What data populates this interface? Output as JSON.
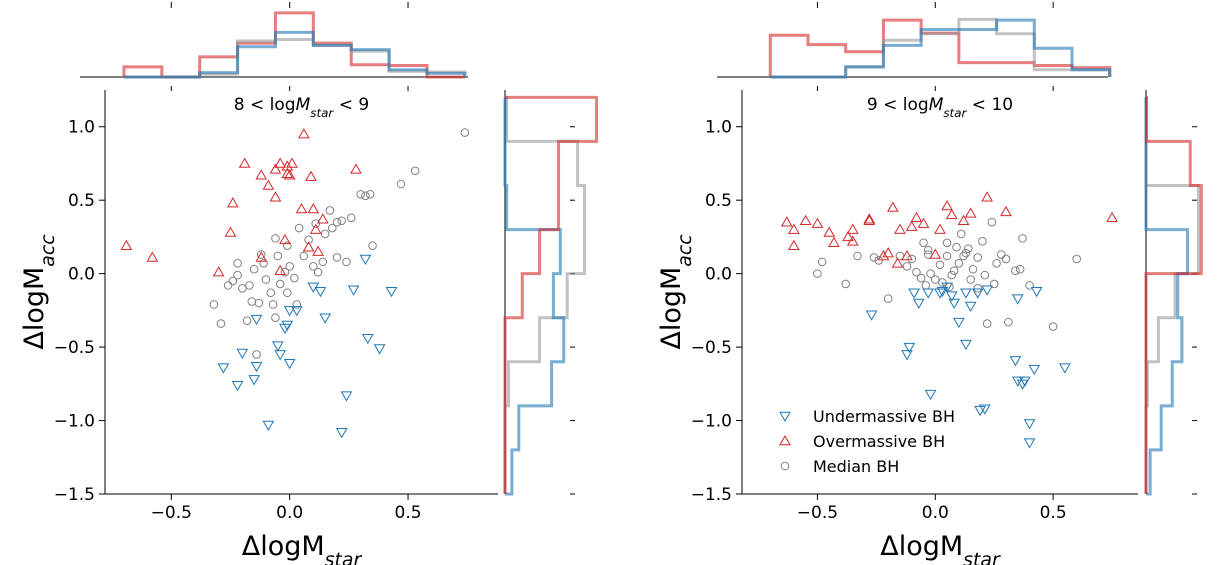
{
  "colors": {
    "under": "#1f77b4",
    "over": "#d62728",
    "median": "#808080",
    "hist_under": "#1f77b4",
    "hist_over": "#d62728",
    "hist_median": "#999999"
  },
  "chart_data": [
    {
      "type": "scatter",
      "title_parts": {
        "pre": "8 < log",
        "main": "M",
        "sub": "star",
        "post": " < 9"
      },
      "xlabel": {
        "main": "ΔlogM",
        "sub": "star"
      },
      "ylabel": {
        "main": "ΔlogM",
        "sub": "acc"
      },
      "xlim": [
        -0.78,
        0.88
      ],
      "ylim": [
        -1.5,
        1.25
      ],
      "xticks": [
        -0.5,
        0.0,
        0.5
      ],
      "xtick_labels": [
        "−0.5",
        "0.0",
        "0.5"
      ],
      "yticks": [
        1.0,
        0.5,
        0.0,
        -0.5,
        -1.0,
        -1.5
      ],
      "ytick_labels": [
        "1.0",
        "0.5",
        "0.0",
        "−0.5",
        "−1.0",
        "−1.5"
      ],
      "series": [
        {
          "key": "under",
          "points": [
            [
              -0.28,
              -0.64
            ],
            [
              -0.2,
              -0.54
            ],
            [
              -0.22,
              -0.76
            ],
            [
              -0.15,
              -0.72
            ],
            [
              -0.14,
              -0.63
            ],
            [
              -0.14,
              -0.31
            ],
            [
              -0.09,
              -1.03
            ],
            [
              -0.05,
              -0.49
            ],
            [
              -0.04,
              -0.55
            ],
            [
              -0.02,
              -0.37
            ],
            [
              0.0,
              -0.61
            ],
            [
              0.0,
              -0.25
            ],
            [
              0.03,
              -0.25
            ],
            [
              0.1,
              -0.09
            ],
            [
              0.13,
              -0.12
            ],
            [
              0.15,
              -0.3
            ],
            [
              0.22,
              -1.08
            ],
            [
              0.24,
              -0.83
            ],
            [
              0.27,
              -0.11
            ],
            [
              0.32,
              0.1
            ],
            [
              0.33,
              -0.44
            ],
            [
              0.38,
              -0.51
            ],
            [
              0.43,
              -0.12
            ],
            [
              -0.01,
              -0.35
            ]
          ]
        },
        {
          "key": "over",
          "points": [
            [
              -0.69,
              0.19
            ],
            [
              -0.58,
              0.11
            ],
            [
              -0.3,
              0.01
            ],
            [
              -0.24,
              0.48
            ],
            [
              -0.25,
              0.28
            ],
            [
              -0.19,
              0.75
            ],
            [
              -0.12,
              0.67
            ],
            [
              -0.09,
              0.6
            ],
            [
              -0.06,
              0.71
            ],
            [
              -0.04,
              0.75
            ],
            [
              -0.06,
              0.52
            ],
            [
              -0.04,
              0.02
            ],
            [
              -0.01,
              0.68
            ],
            [
              0.0,
              0.67
            ],
            [
              0.01,
              0.75
            ],
            [
              -0.12,
              0.11
            ],
            [
              -0.02,
              0.23
            ],
            [
              0.05,
              0.44
            ],
            [
              0.06,
              0.95
            ],
            [
              0.09,
              0.66
            ],
            [
              0.1,
              0.44
            ],
            [
              0.11,
              0.3
            ],
            [
              0.12,
              0.15
            ],
            [
              0.14,
              0.37
            ],
            [
              0.08,
              0.18
            ],
            [
              0.28,
              0.71
            ],
            [
              -0.01,
              0.73
            ]
          ]
        },
        {
          "key": "median",
          "points": [
            [
              -0.32,
              -0.21
            ],
            [
              -0.29,
              -0.34
            ],
            [
              -0.26,
              -0.08
            ],
            [
              -0.24,
              -0.05
            ],
            [
              -0.22,
              0.07
            ],
            [
              -0.22,
              -0.01
            ],
            [
              -0.2,
              -0.1
            ],
            [
              -0.17,
              -0.08
            ],
            [
              -0.16,
              -0.19
            ],
            [
              -0.15,
              0.03
            ],
            [
              -0.13,
              -0.2
            ],
            [
              -0.12,
              0.13
            ],
            [
              -0.11,
              0.07
            ],
            [
              -0.1,
              -0.04
            ],
            [
              -0.08,
              -0.13
            ],
            [
              -0.07,
              -0.21
            ],
            [
              -0.06,
              -0.3
            ],
            [
              -0.06,
              0.24
            ],
            [
              -0.05,
              0.12
            ],
            [
              -0.04,
              -0.07
            ],
            [
              -0.02,
              0.01
            ],
            [
              -0.01,
              -0.13
            ],
            [
              -0.01,
              0.19
            ],
            [
              0.0,
              0.05
            ],
            [
              0.02,
              -0.03
            ],
            [
              0.03,
              -0.21
            ],
            [
              0.04,
              0.31
            ],
            [
              0.06,
              0.12
            ],
            [
              0.08,
              0.23
            ],
            [
              0.1,
              0.05
            ],
            [
              0.11,
              0.34
            ],
            [
              0.12,
              0.01
            ],
            [
              0.14,
              0.08
            ],
            [
              0.15,
              0.27
            ],
            [
              0.17,
              0.43
            ],
            [
              0.18,
              0.31
            ],
            [
              0.2,
              0.35
            ],
            [
              0.22,
              0.36
            ],
            [
              0.24,
              0.08
            ],
            [
              0.26,
              0.38
            ],
            [
              0.3,
              0.54
            ],
            [
              0.32,
              0.53
            ],
            [
              0.34,
              0.54
            ],
            [
              0.35,
              0.19
            ],
            [
              0.47,
              0.61
            ],
            [
              0.53,
              0.7
            ],
            [
              0.74,
              0.96
            ],
            [
              -0.14,
              -0.55
            ],
            [
              -0.18,
              -0.32
            ],
            [
              0.2,
              0.11
            ]
          ]
        }
      ],
      "top_histogram": {
        "edges": [
          -0.7,
          -0.54,
          -0.38,
          -0.22,
          -0.06,
          0.1,
          0.26,
          0.42,
          0.58,
          0.74
        ],
        "under": [
          0,
          0,
          0.06,
          0.42,
          0.62,
          0.44,
          0.38,
          0.1,
          0.05
        ],
        "over": [
          0.14,
          0,
          0.28,
          0.47,
          0.89,
          0.47,
          0.17,
          0.16,
          0
        ],
        "median": [
          0,
          0,
          0.04,
          0.5,
          0.52,
          0.44,
          0.36,
          0.08,
          0.07
        ],
        "max": 1.0
      },
      "right_histogram": {
        "edges": [
          -1.5,
          -1.2,
          -0.9,
          -0.6,
          -0.3,
          0.0,
          0.3,
          0.6,
          0.9,
          1.2
        ],
        "under": [
          0.2,
          0.4,
          1.35,
          1.7,
          1.4,
          1.6,
          0.05,
          0,
          0
        ],
        "over": [
          0,
          0,
          0,
          0,
          0.5,
          1.0,
          1.55,
          1.55,
          2.65
        ],
        "median": [
          0,
          0,
          0.1,
          1.0,
          1.8,
          2.3,
          2.3,
          2.1,
          0.05
        ],
        "max": 2.75
      }
    },
    {
      "type": "scatter",
      "title_parts": {
        "pre": "9 < log",
        "main": "M",
        "sub": "star",
        "post": " < 10"
      },
      "xlabel": {
        "main": "ΔlogM",
        "sub": "star"
      },
      "ylabel": {
        "main": "ΔlogM",
        "sub": "acc"
      },
      "xlim": [
        -0.82,
        0.86
      ],
      "ylim": [
        -1.5,
        1.25
      ],
      "xticks": [
        -0.5,
        0.0,
        0.5
      ],
      "xtick_labels": [
        "−0.5",
        "0.0",
        "0.5"
      ],
      "yticks": [
        1.0,
        0.5,
        0.0,
        -0.5,
        -1.0,
        -1.5
      ],
      "ytick_labels": [
        "1.0",
        "0.5",
        "0.0",
        "−0.5",
        "−1.0",
        "−1.5"
      ],
      "legend": {
        "position": "lower-left",
        "labels": [
          "Undermassive BH",
          "Overmassive BH",
          "Median BH"
        ]
      },
      "series": [
        {
          "key": "under",
          "points": [
            [
              -0.27,
              -0.28
            ],
            [
              -0.12,
              -0.55
            ],
            [
              -0.11,
              -0.5
            ],
            [
              -0.09,
              -0.13
            ],
            [
              -0.07,
              -0.2
            ],
            [
              -0.03,
              -0.13
            ],
            [
              -0.02,
              -0.82
            ],
            [
              0.02,
              -0.13
            ],
            [
              0.03,
              -0.12
            ],
            [
              0.05,
              -0.09
            ],
            [
              0.07,
              -0.15
            ],
            [
              0.08,
              -0.2
            ],
            [
              0.1,
              -0.33
            ],
            [
              0.13,
              -0.13
            ],
            [
              0.15,
              -0.22
            ],
            [
              0.18,
              -0.13
            ],
            [
              0.22,
              -0.11
            ],
            [
              0.19,
              -0.93
            ],
            [
              0.21,
              -0.92
            ],
            [
              0.34,
              -0.59
            ],
            [
              0.35,
              -0.73
            ],
            [
              0.37,
              -0.75
            ],
            [
              0.38,
              -0.73
            ],
            [
              0.4,
              -1.02
            ],
            [
              0.4,
              -1.15
            ],
            [
              0.43,
              -0.12
            ],
            [
              0.55,
              -0.64
            ],
            [
              0.13,
              -0.48
            ],
            [
              0.35,
              -0.17
            ],
            [
              0.42,
              -0.65
            ]
          ]
        },
        {
          "key": "over",
          "points": [
            [
              -0.63,
              0.35
            ],
            [
              -0.6,
              0.3
            ],
            [
              -0.6,
              0.19
            ],
            [
              -0.55,
              0.36
            ],
            [
              -0.5,
              0.34
            ],
            [
              -0.45,
              0.28
            ],
            [
              -0.43,
              0.21
            ],
            [
              -0.35,
              0.3
            ],
            [
              -0.35,
              0.22
            ],
            [
              -0.37,
              0.25
            ],
            [
              -0.28,
              0.37
            ],
            [
              -0.28,
              0.36
            ],
            [
              -0.22,
              0.12
            ],
            [
              -0.18,
              0.45
            ],
            [
              -0.16,
              0.07
            ],
            [
              -0.15,
              0.3
            ],
            [
              -0.12,
              0.12
            ],
            [
              -0.1,
              0.32
            ],
            [
              -0.08,
              0.38
            ],
            [
              -0.05,
              0.34
            ],
            [
              0.02,
              0.3
            ],
            [
              0.05,
              0.46
            ],
            [
              0.07,
              0.4
            ],
            [
              0.12,
              0.36
            ],
            [
              0.15,
              0.41
            ],
            [
              0.22,
              0.52
            ],
            [
              0.3,
              0.42
            ],
            [
              0.75,
              0.38
            ],
            [
              -0.2,
              0.14
            ],
            [
              0.0,
              0.13
            ]
          ]
        },
        {
          "key": "median",
          "points": [
            [
              -0.5,
              0.0
            ],
            [
              -0.48,
              0.08
            ],
            [
              -0.38,
              -0.07
            ],
            [
              -0.33,
              0.12
            ],
            [
              -0.26,
              0.11
            ],
            [
              -0.24,
              0.09
            ],
            [
              -0.2,
              -0.17
            ],
            [
              -0.15,
              0.12
            ],
            [
              -0.12,
              0.05
            ],
            [
              -0.1,
              0.1
            ],
            [
              -0.08,
              0.01
            ],
            [
              -0.06,
              -0.03
            ],
            [
              -0.05,
              0.21
            ],
            [
              -0.04,
              -0.08
            ],
            [
              -0.03,
              0.13
            ],
            [
              -0.02,
              0.0
            ],
            [
              0.0,
              -0.04
            ],
            [
              0.02,
              0.06
            ],
            [
              0.03,
              -0.06
            ],
            [
              0.05,
              0.12
            ],
            [
              0.06,
              -0.09
            ],
            [
              0.08,
              0.02
            ],
            [
              0.09,
              0.18
            ],
            [
              0.1,
              0.07
            ],
            [
              0.11,
              0.27
            ],
            [
              0.12,
              0.12
            ],
            [
              0.13,
              0.14
            ],
            [
              0.15,
              -0.04
            ],
            [
              0.16,
              0.03
            ],
            [
              0.18,
              0.11
            ],
            [
              0.2,
              0.22
            ],
            [
              0.21,
              -0.01
            ],
            [
              0.22,
              -0.34
            ],
            [
              0.24,
              0.35
            ],
            [
              0.26,
              0.07
            ],
            [
              0.28,
              0.13
            ],
            [
              0.3,
              0.1
            ],
            [
              0.31,
              -0.33
            ],
            [
              0.34,
              0.02
            ],
            [
              0.36,
              0.03
            ],
            [
              0.37,
              0.24
            ],
            [
              0.4,
              -0.08
            ],
            [
              0.5,
              -0.36
            ],
            [
              0.6,
              0.1
            ],
            [
              0.25,
              -0.07
            ],
            [
              -0.03,
              0.16
            ],
            [
              0.07,
              -0.01
            ],
            [
              0.18,
              -0.1
            ],
            [
              0.05,
              0.21
            ],
            [
              0.14,
              0.17
            ]
          ]
        }
      ],
      "top_histogram": {
        "edges": [
          -0.7,
          -0.54,
          -0.38,
          -0.22,
          -0.06,
          0.1,
          0.26,
          0.42,
          0.58,
          0.74
        ],
        "under": [
          0,
          0,
          0.14,
          0.44,
          0.66,
          0.66,
          0.79,
          0.4,
          0.1
        ],
        "over": [
          0.58,
          0.45,
          0.35,
          0.79,
          0.61,
          0.2,
          0.2,
          0.16,
          0.13
        ],
        "median": [
          0,
          0,
          0.14,
          0.51,
          0.6,
          0.8,
          0.6,
          0.1,
          0.1
        ],
        "max": 1.0
      },
      "right_histogram": {
        "edges": [
          -1.5,
          -1.2,
          -0.9,
          -0.6,
          -0.3,
          0.0,
          0.3,
          0.6,
          0.9,
          1.2
        ],
        "under": [
          0.15,
          0.55,
          0.95,
          1.3,
          1.15,
          1.5,
          0,
          0,
          0
        ],
        "over": [
          0,
          0,
          0,
          0,
          0,
          2.0,
          2.0,
          1.6,
          0.02
        ],
        "median": [
          0,
          0,
          0.05,
          0.45,
          1.05,
          1.9,
          1.9,
          0,
          0
        ],
        "max": 2.75
      }
    }
  ]
}
